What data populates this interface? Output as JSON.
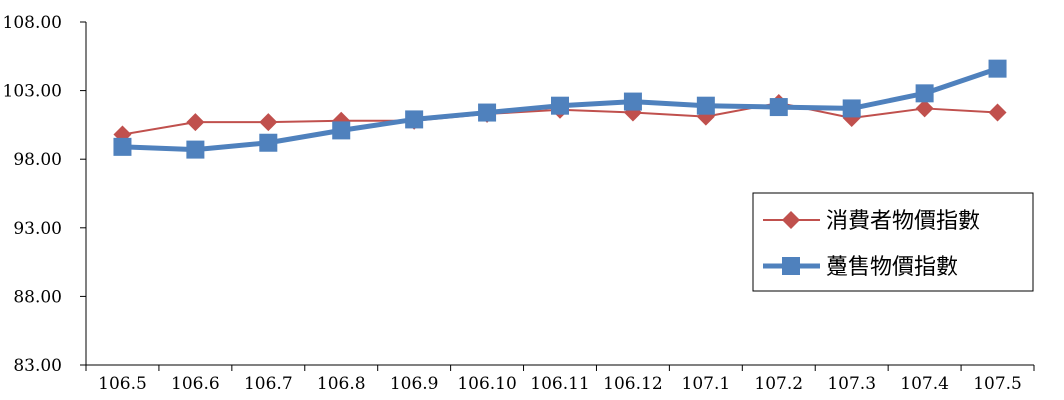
{
  "chart_data": {
    "type": "line",
    "title": "",
    "xlabel": "",
    "ylabel": "",
    "categories": [
      "106.5",
      "106.6",
      "106.7",
      "106.8",
      "106.9",
      "106.10",
      "106.11",
      "106.12",
      "107.1",
      "107.2",
      "107.3",
      "107.4",
      "107.5"
    ],
    "y_ticks": [
      "83.00",
      "88.00",
      "93.00",
      "98.00",
      "103.00",
      "108.00"
    ],
    "ylim": [
      83,
      108
    ],
    "grid": false,
    "legend_position": "right",
    "series": [
      {
        "name": "消費者物價指數",
        "color": "#c0504d",
        "marker": "diamond",
        "values": [
          99.8,
          100.7,
          100.7,
          100.8,
          100.8,
          101.3,
          101.6,
          101.4,
          101.1,
          102.1,
          101.0,
          101.7,
          101.4
        ]
      },
      {
        "name": "躉售物價指數",
        "color": "#4f81bd",
        "marker": "square",
        "values": [
          98.9,
          98.7,
          99.2,
          100.1,
          100.9,
          101.4,
          101.9,
          102.2,
          101.9,
          101.8,
          101.7,
          102.8,
          104.6
        ]
      }
    ]
  }
}
